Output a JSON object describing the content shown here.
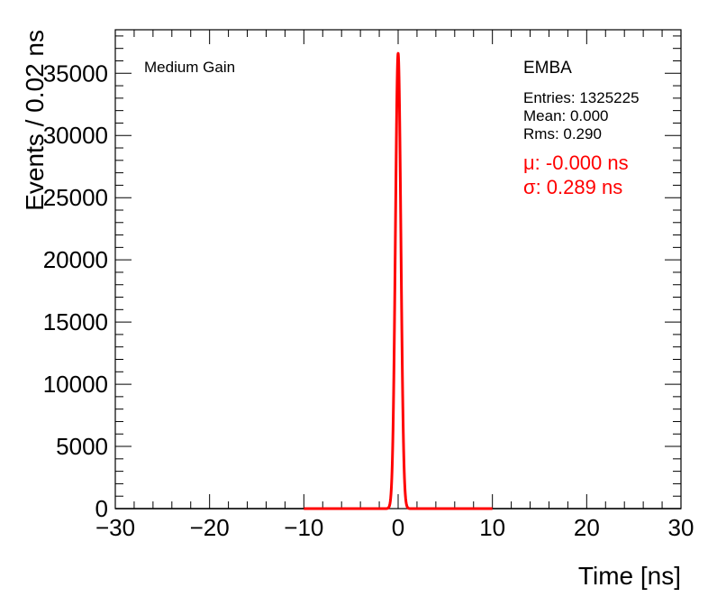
{
  "chart_data": {
    "type": "line",
    "xlabel": "Time [ns]",
    "ylabel": "Events / 0.02 ns",
    "xlim": [
      -30,
      30
    ],
    "ylim": [
      0,
      38500
    ],
    "x_ticks": [
      "−30",
      "−20",
      "−10",
      "0",
      "10",
      "20",
      "30"
    ],
    "x_tick_values": [
      -30,
      -20,
      -10,
      0,
      10,
      20,
      30
    ],
    "y_ticks": [
      "0",
      "5000",
      "10000",
      "15000",
      "20000",
      "25000",
      "30000",
      "35000"
    ],
    "y_tick_values": [
      0,
      5000,
      10000,
      15000,
      20000,
      25000,
      30000,
      35000
    ],
    "gain_label": "Medium Gain",
    "detector_label": "EMBA",
    "stats": {
      "entries": "Entries: 1325225",
      "mean": "Mean: 0.000",
      "rms": "Rms: 0.290"
    },
    "fit": {
      "mu_text": "μ: -0.000 ns",
      "sigma_text": "σ: 0.289 ns",
      "mu": 0.0,
      "sigma": 0.289,
      "range": [
        -10,
        10
      ],
      "color": "#ff0000"
    },
    "series": [
      {
        "label": "histogram",
        "color": "#000000",
        "peak": 36600,
        "mean": 0.0,
        "sigma": 0.29,
        "x_range": [
          -30,
          30
        ]
      }
    ]
  }
}
